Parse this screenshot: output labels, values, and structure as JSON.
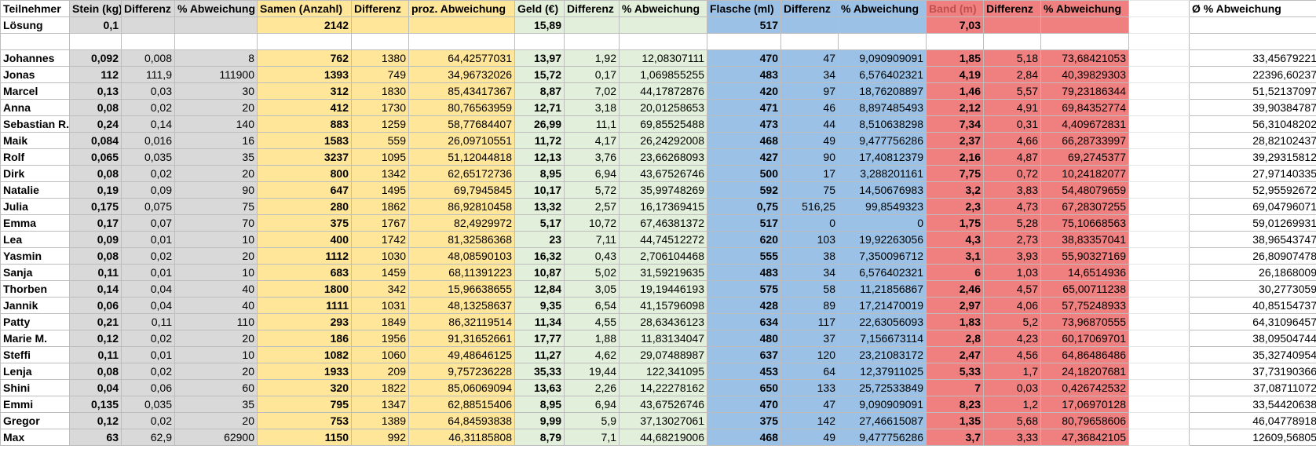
{
  "header": {
    "participant": "Teilnehmer",
    "stein": "Stein (kg)",
    "stein_diff": "Differenz",
    "stein_pct": "% Abweichung",
    "samen": "Samen (Anzahl)",
    "samen_diff": "Differenz",
    "samen_pct": "proz. Abweichung",
    "geld": "Geld (€)",
    "geld_diff": "Differenz",
    "geld_pct": "% Abweichung",
    "flasche": "Flasche (ml)",
    "flasche_diff": "Differenz",
    "flasche_pct": "% Abweichung",
    "band": "Band (m)",
    "band_diff": "Differenz",
    "band_pct": "% Abweichung",
    "avg": "Ø % Abweichung"
  },
  "solution": {
    "label": "Lösung",
    "stein": "0,1",
    "samen": "2142",
    "geld": "15,89",
    "flasche": "517",
    "band": "7,03"
  },
  "rows": [
    {
      "name": "Johannes",
      "stein": "0,092",
      "stein_diff": "0,008",
      "stein_pct": "8",
      "samen": "762",
      "samen_diff": "1380",
      "samen_pct": "64,42577031",
      "geld": "13,97",
      "geld_diff": "1,92",
      "geld_pct": "12,08307111",
      "flasche": "470",
      "flasche_diff": "47",
      "flasche_pct": "9,090909091",
      "band": "1,85",
      "band_diff": "5,18",
      "band_pct": "73,68421053",
      "avg": "33,45679221"
    },
    {
      "name": "Jonas",
      "stein": "112",
      "stein_diff": "111,9",
      "stein_pct": "111900",
      "samen": "1393",
      "samen_diff": "749",
      "samen_pct": "34,96732026",
      "geld": "15,72",
      "geld_diff": "0,17",
      "geld_pct": "1,069855255",
      "flasche": "483",
      "flasche_diff": "34",
      "flasche_pct": "6,576402321",
      "band": "4,19",
      "band_diff": "2,84",
      "band_pct": "40,39829303",
      "avg": "22396,60237"
    },
    {
      "name": "Marcel",
      "stein": "0,13",
      "stein_diff": "0,03",
      "stein_pct": "30",
      "samen": "312",
      "samen_diff": "1830",
      "samen_pct": "85,43417367",
      "geld": "8,87",
      "geld_diff": "7,02",
      "geld_pct": "44,17872876",
      "flasche": "420",
      "flasche_diff": "97",
      "flasche_pct": "18,76208897",
      "band": "1,46",
      "band_diff": "5,57",
      "band_pct": "79,23186344",
      "avg": "51,52137097"
    },
    {
      "name": "Anna",
      "stein": "0,08",
      "stein_diff": "0,02",
      "stein_pct": "20",
      "samen": "412",
      "samen_diff": "1730",
      "samen_pct": "80,76563959",
      "geld": "12,71",
      "geld_diff": "3,18",
      "geld_pct": "20,01258653",
      "flasche": "471",
      "flasche_diff": "46",
      "flasche_pct": "8,897485493",
      "band": "2,12",
      "band_diff": "4,91",
      "band_pct": "69,84352774",
      "avg": "39,90384787"
    },
    {
      "name": "Sebastian R.",
      "stein": "0,24",
      "stein_diff": "0,14",
      "stein_pct": "140",
      "samen": "883",
      "samen_diff": "1259",
      "samen_pct": "58,77684407",
      "geld": "26,99",
      "geld_diff": "11,1",
      "geld_pct": "69,85525488",
      "flasche": "473",
      "flasche_diff": "44",
      "flasche_pct": "8,510638298",
      "band": "7,34",
      "band_diff": "0,31",
      "band_pct": "4,409672831",
      "avg": "56,31048202"
    },
    {
      "name": "Maik",
      "stein": "0,084",
      "stein_diff": "0,016",
      "stein_pct": "16",
      "samen": "1583",
      "samen_diff": "559",
      "samen_pct": "26,09710551",
      "geld": "11,72",
      "geld_diff": "4,17",
      "geld_pct": "26,24292008",
      "flasche": "468",
      "flasche_diff": "49",
      "flasche_pct": "9,477756286",
      "band": "2,37",
      "band_diff": "4,66",
      "band_pct": "66,28733997",
      "avg": "28,82102437"
    },
    {
      "name": "Rolf",
      "stein": "0,065",
      "stein_diff": "0,035",
      "stein_pct": "35",
      "samen": "3237",
      "samen_diff": "1095",
      "samen_pct": "51,12044818",
      "geld": "12,13",
      "geld_diff": "3,76",
      "geld_pct": "23,66268093",
      "flasche": "427",
      "flasche_diff": "90",
      "flasche_pct": "17,40812379",
      "band": "2,16",
      "band_diff": "4,87",
      "band_pct": "69,2745377",
      "avg": "39,29315812"
    },
    {
      "name": "Dirk",
      "stein": "0,08",
      "stein_diff": "0,02",
      "stein_pct": "20",
      "samen": "800",
      "samen_diff": "1342",
      "samen_pct": "62,65172736",
      "geld": "8,95",
      "geld_diff": "6,94",
      "geld_pct": "43,67526746",
      "flasche": "500",
      "flasche_diff": "17",
      "flasche_pct": "3,288201161",
      "band": "7,75",
      "band_diff": "0,72",
      "band_pct": "10,24182077",
      "avg": "27,97140335"
    },
    {
      "name": "Natalie",
      "stein": "0,19",
      "stein_diff": "0,09",
      "stein_pct": "90",
      "samen": "647",
      "samen_diff": "1495",
      "samen_pct": "69,7945845",
      "geld": "10,17",
      "geld_diff": "5,72",
      "geld_pct": "35,99748269",
      "flasche": "592",
      "flasche_diff": "75",
      "flasche_pct": "14,50676983",
      "band": "3,2",
      "band_diff": "3,83",
      "band_pct": "54,48079659",
      "avg": "52,95592672"
    },
    {
      "name": "Julia",
      "stein": "0,175",
      "stein_diff": "0,075",
      "stein_pct": "75",
      "samen": "280",
      "samen_diff": "1862",
      "samen_pct": "86,92810458",
      "geld": "13,32",
      "geld_diff": "2,57",
      "geld_pct": "16,17369415",
      "flasche": "0,75",
      "flasche_diff": "516,25",
      "flasche_pct": "99,8549323",
      "band": "2,3",
      "band_diff": "4,73",
      "band_pct": "67,28307255",
      "avg": "69,04796071"
    },
    {
      "name": "Emma",
      "stein": "0,17",
      "stein_diff": "0,07",
      "stein_pct": "70",
      "samen": "375",
      "samen_diff": "1767",
      "samen_pct": "82,4929972",
      "geld": "5,17",
      "geld_diff": "10,72",
      "geld_pct": "67,46381372",
      "flasche": "517",
      "flasche_diff": "0",
      "flasche_pct": "0",
      "band": "1,75",
      "band_diff": "5,28",
      "band_pct": "75,10668563",
      "avg": "59,01269931"
    },
    {
      "name": "Lea",
      "stein": "0,09",
      "stein_diff": "0,01",
      "stein_pct": "10",
      "samen": "400",
      "samen_diff": "1742",
      "samen_pct": "81,32586368",
      "geld": "23",
      "geld_diff": "7,11",
      "geld_pct": "44,74512272",
      "flasche": "620",
      "flasche_diff": "103",
      "flasche_pct": "19,92263056",
      "band": "4,3",
      "band_diff": "2,73",
      "band_pct": "38,83357041",
      "avg": "38,96543747"
    },
    {
      "name": "Yasmin",
      "stein": "0,08",
      "stein_diff": "0,02",
      "stein_pct": "20",
      "samen": "1112",
      "samen_diff": "1030",
      "samen_pct": "48,08590103",
      "geld": "16,32",
      "geld_diff": "0,43",
      "geld_pct": "2,706104468",
      "flasche": "555",
      "flasche_diff": "38",
      "flasche_pct": "7,350096712",
      "band": "3,1",
      "band_diff": "3,93",
      "band_pct": "55,90327169",
      "avg": "26,80907478"
    },
    {
      "name": "Sanja",
      "stein": "0,11",
      "stein_diff": "0,01",
      "stein_pct": "10",
      "samen": "683",
      "samen_diff": "1459",
      "samen_pct": "68,11391223",
      "geld": "10,87",
      "geld_diff": "5,02",
      "geld_pct": "31,59219635",
      "flasche": "483",
      "flasche_diff": "34",
      "flasche_pct": "6,576402321",
      "band": "6",
      "band_diff": "1,03",
      "band_pct": "14,6514936",
      "avg": "26,1868009"
    },
    {
      "name": "Thorben",
      "stein": "0,14",
      "stein_diff": "0,04",
      "stein_pct": "40",
      "samen": "1800",
      "samen_diff": "342",
      "samen_pct": "15,96638655",
      "geld": "12,84",
      "geld_diff": "3,05",
      "geld_pct": "19,19446193",
      "flasche": "575",
      "flasche_diff": "58",
      "flasche_pct": "11,21856867",
      "band": "2,46",
      "band_diff": "4,57",
      "band_pct": "65,00711238",
      "avg": "30,2773059"
    },
    {
      "name": "Jannik",
      "stein": "0,06",
      "stein_diff": "0,04",
      "stein_pct": "40",
      "samen": "1111",
      "samen_diff": "1031",
      "samen_pct": "48,13258637",
      "geld": "9,35",
      "geld_diff": "6,54",
      "geld_pct": "41,15796098",
      "flasche": "428",
      "flasche_diff": "89",
      "flasche_pct": "17,21470019",
      "band": "2,97",
      "band_diff": "4,06",
      "band_pct": "57,75248933",
      "avg": "40,85154737"
    },
    {
      "name": "Patty",
      "stein": "0,21",
      "stein_diff": "0,11",
      "stein_pct": "110",
      "samen": "293",
      "samen_diff": "1849",
      "samen_pct": "86,32119514",
      "geld": "11,34",
      "geld_diff": "4,55",
      "geld_pct": "28,63436123",
      "flasche": "634",
      "flasche_diff": "117",
      "flasche_pct": "22,63056093",
      "band": "1,83",
      "band_diff": "5,2",
      "band_pct": "73,96870555",
      "avg": "64,31096457"
    },
    {
      "name": "Marie M.",
      "stein": "0,12",
      "stein_diff": "0,02",
      "stein_pct": "20",
      "samen": "186",
      "samen_diff": "1956",
      "samen_pct": "91,31652661",
      "geld": "17,77",
      "geld_diff": "1,88",
      "geld_pct": "11,83134047",
      "flasche": "480",
      "flasche_diff": "37",
      "flasche_pct": "7,156673114",
      "band": "2,8",
      "band_diff": "4,23",
      "band_pct": "60,17069701",
      "avg": "38,09504744"
    },
    {
      "name": "Steffi",
      "stein": "0,11",
      "stein_diff": "0,01",
      "stein_pct": "10",
      "samen": "1082",
      "samen_diff": "1060",
      "samen_pct": "49,48646125",
      "geld": "11,27",
      "geld_diff": "4,62",
      "geld_pct": "29,07488987",
      "flasche": "637",
      "flasche_diff": "120",
      "flasche_pct": "23,21083172",
      "band": "2,47",
      "band_diff": "4,56",
      "band_pct": "64,86486486",
      "avg": "35,32740954"
    },
    {
      "name": "Lenja",
      "stein": "0,08",
      "stein_diff": "0,02",
      "stein_pct": "20",
      "samen": "1933",
      "samen_diff": "209",
      "samen_pct": "9,757236228",
      "geld": "35,33",
      "geld_diff": "19,44",
      "geld_pct": "122,341095",
      "flasche": "453",
      "flasche_diff": "64",
      "flasche_pct": "12,37911025",
      "band": "5,33",
      "band_diff": "1,7",
      "band_pct": "24,18207681",
      "avg": "37,73190366"
    },
    {
      "name": "Shini",
      "stein": "0,04",
      "stein_diff": "0,06",
      "stein_pct": "60",
      "samen": "320",
      "samen_diff": "1822",
      "samen_pct": "85,06069094",
      "geld": "13,63",
      "geld_diff": "2,26",
      "geld_pct": "14,22278162",
      "flasche": "650",
      "flasche_diff": "133",
      "flasche_pct": "25,72533849",
      "band": "7",
      "band_diff": "0,03",
      "band_pct": "0,426742532",
      "avg": "37,08711072"
    },
    {
      "name": "Emmi",
      "stein": "0,135",
      "stein_diff": "0,035",
      "stein_pct": "35",
      "samen": "795",
      "samen_diff": "1347",
      "samen_pct": "62,88515406",
      "geld": "8,95",
      "geld_diff": "6,94",
      "geld_pct": "43,67526746",
      "flasche": "470",
      "flasche_diff": "47",
      "flasche_pct": "9,090909091",
      "band": "8,23",
      "band_diff": "1,2",
      "band_pct": "17,06970128",
      "avg": "33,54420638"
    },
    {
      "name": "Gregor",
      "stein": "0,12",
      "stein_diff": "0,02",
      "stein_pct": "20",
      "samen": "753",
      "samen_diff": "1389",
      "samen_pct": "64,84593838",
      "geld": "9,99",
      "geld_diff": "5,9",
      "geld_pct": "37,13027061",
      "flasche": "375",
      "flasche_diff": "142",
      "flasche_pct": "27,46615087",
      "band": "1,35",
      "band_diff": "5,68",
      "band_pct": "80,79658606",
      "avg": "46,04778918"
    },
    {
      "name": "Max",
      "stein": "63",
      "stein_diff": "62,9",
      "stein_pct": "62900",
      "samen": "1150",
      "samen_diff": "992",
      "samen_pct": "46,31185808",
      "geld": "8,79",
      "geld_diff": "7,1",
      "geld_pct": "44,68219006",
      "flasche": "468",
      "flasche_diff": "49",
      "flasche_pct": "9,477756286",
      "band": "3,7",
      "band_diff": "3,33",
      "band_pct": "47,36842105",
      "avg": "12609,56805"
    }
  ],
  "colors": {
    "gray": "#d9d9d9",
    "yellow": "#ffe699",
    "green": "#e2efda",
    "blue": "#9bc2e6",
    "red": "#f08080",
    "band_header_text": "#c0504d"
  }
}
